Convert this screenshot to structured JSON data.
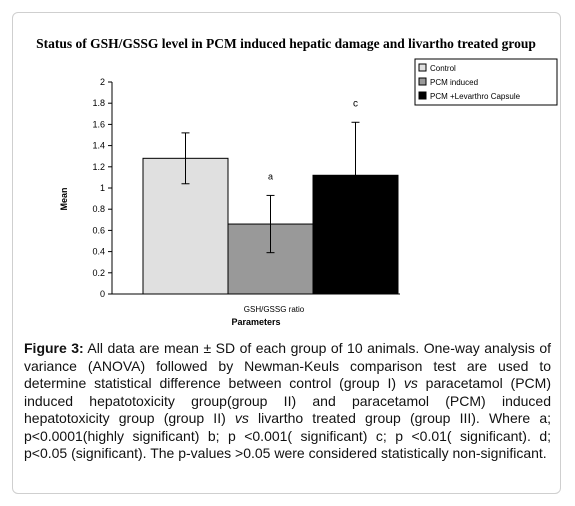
{
  "chart_data": {
    "type": "bar",
    "title": "Status of GSH/GSSG level in PCM induced hepatic damage and livartho treated group",
    "xlabel": "Parameters",
    "ylabel": "Mean",
    "ylim": [
      0,
      2
    ],
    "yticks": [
      "0",
      "0.2",
      "0.4",
      "0.6",
      "0.8",
      "1",
      "1.2",
      "1.4",
      "1.6",
      "1.8",
      "2"
    ],
    "categories": [
      "GSH/GSSG ratio"
    ],
    "grid": false,
    "legend_position": "top-right",
    "series": [
      {
        "name": "Control",
        "values": [
          1.28
        ],
        "error": [
          0.24
        ],
        "color": "#e0e0e0",
        "annotation": ""
      },
      {
        "name": "PCM induced",
        "values": [
          0.66
        ],
        "error": [
          0.27
        ],
        "color": "#999999",
        "annotation": "a"
      },
      {
        "name": "PCM  +Levarthro Capsule",
        "values": [
          1.12
        ],
        "error": [
          0.5
        ],
        "color": "#000000",
        "annotation": "c"
      }
    ]
  },
  "caption": {
    "label": "Figure 3:",
    "part1": " All data are mean ± SD of each group of 10 animals. One-way analysis of variance (ANOVA) followed by Newman-Keuls comparison test are used to determine statistical difference between control (group I) ",
    "vs1": "vs",
    "part2": " paracetamol (PCM) induced hepatotoxicity group(group II) and paracetamol (PCM) induced hepatotoxicity group (group II) ",
    "vs2": "vs",
    "part3": " livartho treated group (group III). Where a; p<0.0001(highly significant) b; p <0.001( significant) c; p <0.01( significant). d; p<0.05 (significant). The p-values >0.05 were considered statistically non-significant."
  }
}
